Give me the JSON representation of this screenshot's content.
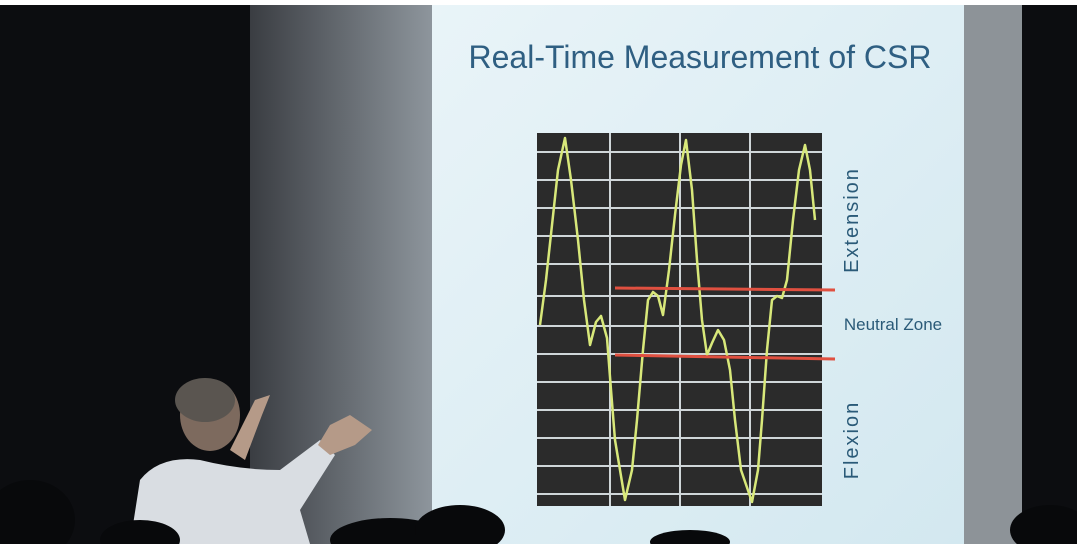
{
  "slide": {
    "title": "Real-Time Measurement of CSR",
    "labels": {
      "extension": "Extension",
      "neutral_zone": "Neutral Zone",
      "flexion": "Flexion"
    }
  }
}
